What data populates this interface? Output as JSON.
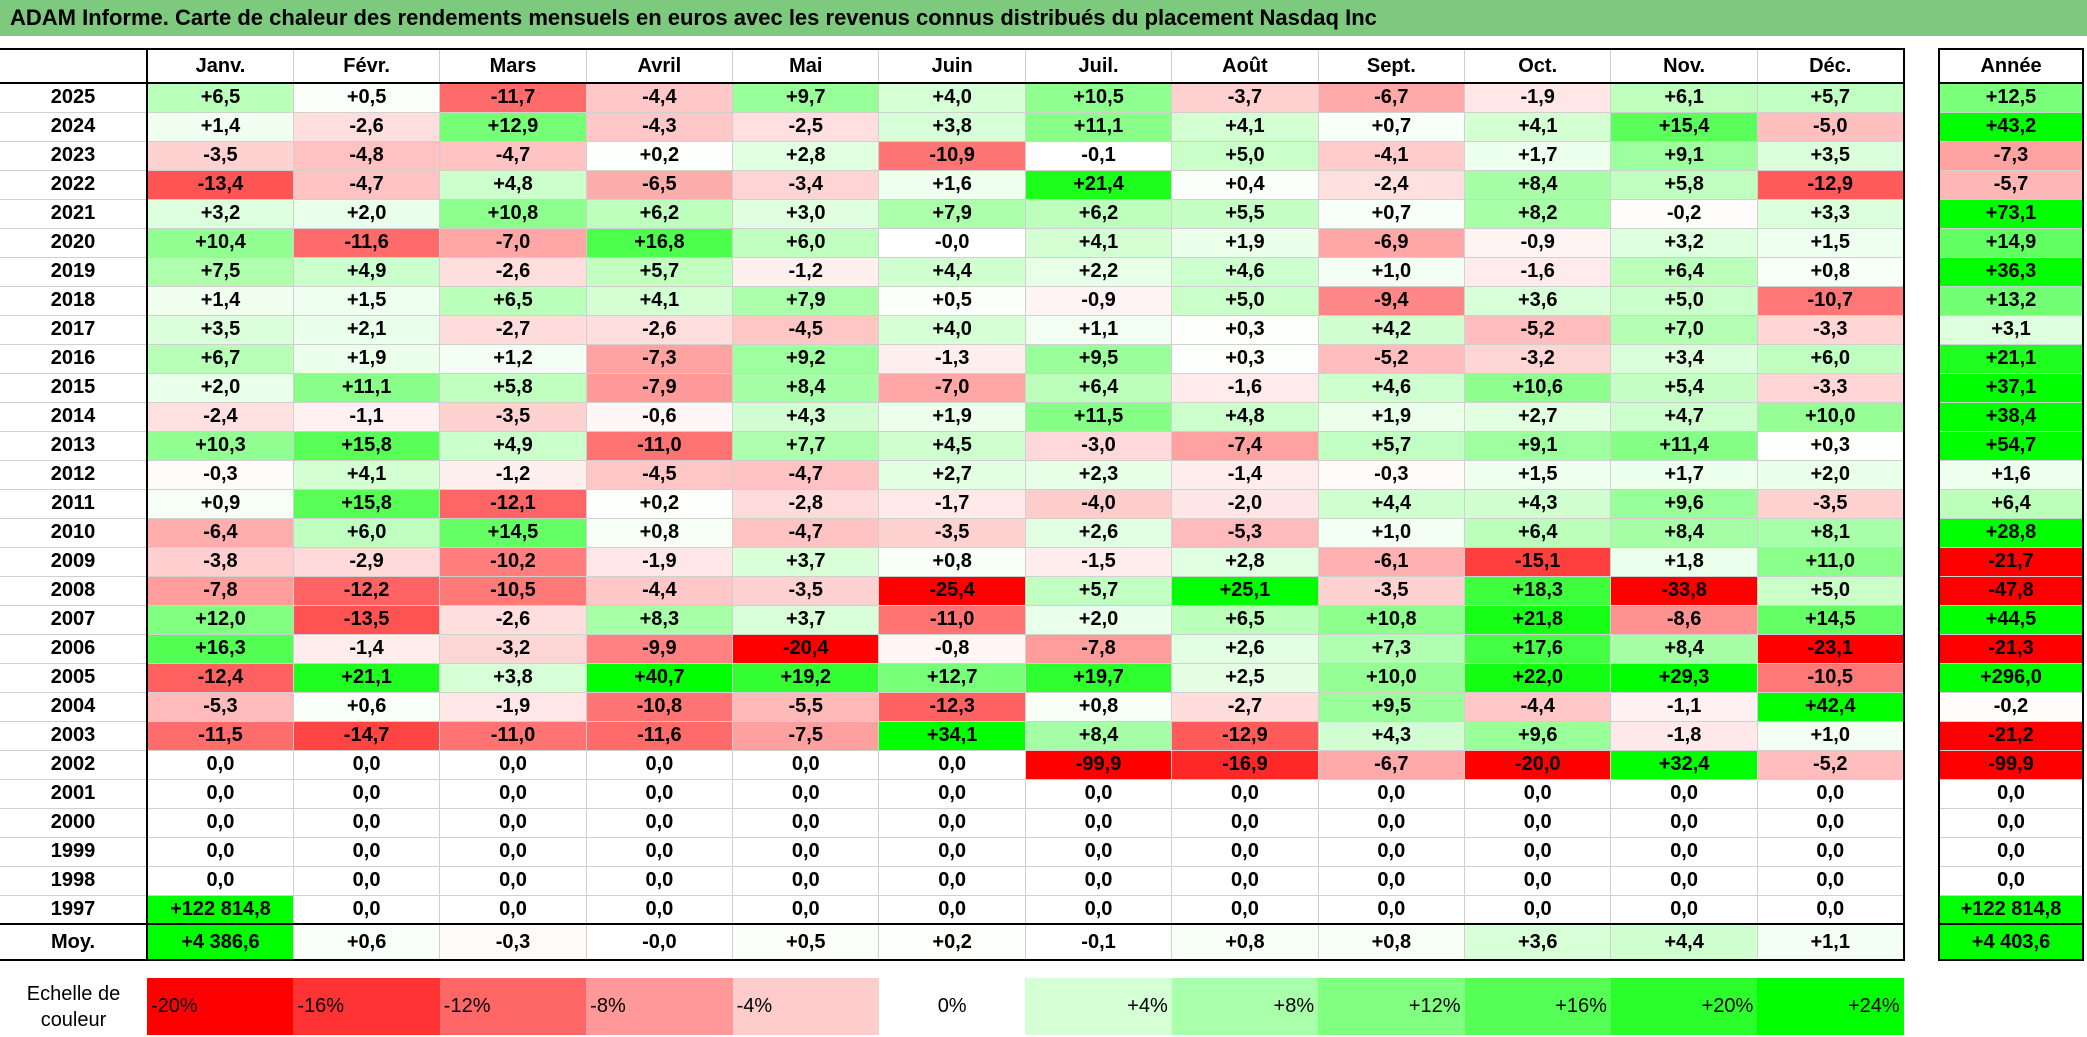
{
  "title": "ADAM Informe. Carte de chaleur des rendements mensuels en euros avec les revenus connus distribués du placement Nasdaq Inc",
  "chart_data": {
    "type": "heatmap",
    "months": [
      "Janv.",
      "Févr.",
      "Mars",
      "Avril",
      "Mai",
      "Juin",
      "Juil.",
      "Août",
      "Sept.",
      "Oct.",
      "Nov.",
      "Déc."
    ],
    "year_header": "Année",
    "rows": [
      {
        "label": "2025",
        "values": [
          "+6,5",
          "+0,5",
          "-11,7",
          "-4,4",
          "+9,7",
          "+4,0",
          "+10,5",
          "-3,7",
          "-6,7",
          "-1,9",
          "+6,1",
          "+5,7"
        ],
        "year": "+12,5"
      },
      {
        "label": "2024",
        "values": [
          "+1,4",
          "-2,6",
          "+12,9",
          "-4,3",
          "-2,5",
          "+3,8",
          "+11,1",
          "+4,1",
          "+0,7",
          "+4,1",
          "+15,4",
          "-5,0"
        ],
        "year": "+43,2"
      },
      {
        "label": "2023",
        "values": [
          "-3,5",
          "-4,8",
          "-4,7",
          "+0,2",
          "+2,8",
          "-10,9",
          "-0,1",
          "+5,0",
          "-4,1",
          "+1,7",
          "+9,1",
          "+3,5"
        ],
        "year": "-7,3"
      },
      {
        "label": "2022",
        "values": [
          "-13,4",
          "-4,7",
          "+4,8",
          "-6,5",
          "-3,4",
          "+1,6",
          "+21,4",
          "+0,4",
          "-2,4",
          "+8,4",
          "+5,8",
          "-12,9"
        ],
        "year": "-5,7"
      },
      {
        "label": "2021",
        "values": [
          "+3,2",
          "+2,0",
          "+10,8",
          "+6,2",
          "+3,0",
          "+7,9",
          "+6,2",
          "+5,5",
          "+0,7",
          "+8,2",
          "-0,2",
          "+3,3"
        ],
        "year": "+73,1"
      },
      {
        "label": "2020",
        "values": [
          "+10,4",
          "-11,6",
          "-7,0",
          "+16,8",
          "+6,0",
          "-0,0",
          "+4,1",
          "+1,9",
          "-6,9",
          "-0,9",
          "+3,2",
          "+1,5"
        ],
        "year": "+14,9"
      },
      {
        "label": "2019",
        "values": [
          "+7,5",
          "+4,9",
          "-2,6",
          "+5,7",
          "-1,2",
          "+4,4",
          "+2,2",
          "+4,6",
          "+1,0",
          "-1,6",
          "+6,4",
          "+0,8"
        ],
        "year": "+36,3"
      },
      {
        "label": "2018",
        "values": [
          "+1,4",
          "+1,5",
          "+6,5",
          "+4,1",
          "+7,9",
          "+0,5",
          "-0,9",
          "+5,0",
          "-9,4",
          "+3,6",
          "+5,0",
          "-10,7"
        ],
        "year": "+13,2"
      },
      {
        "label": "2017",
        "values": [
          "+3,5",
          "+2,1",
          "-2,7",
          "-2,6",
          "-4,5",
          "+4,0",
          "+1,1",
          "+0,3",
          "+4,2",
          "-5,2",
          "+7,0",
          "-3,3"
        ],
        "year": "+3,1"
      },
      {
        "label": "2016",
        "values": [
          "+6,7",
          "+1,9",
          "+1,2",
          "-7,3",
          "+9,2",
          "-1,3",
          "+9,5",
          "+0,3",
          "-5,2",
          "-3,2",
          "+3,4",
          "+6,0"
        ],
        "year": "+21,1"
      },
      {
        "label": "2015",
        "values": [
          "+2,0",
          "+11,1",
          "+5,8",
          "-7,9",
          "+8,4",
          "-7,0",
          "+6,4",
          "-1,6",
          "+4,6",
          "+10,6",
          "+5,4",
          "-3,3"
        ],
        "year": "+37,1"
      },
      {
        "label": "2014",
        "values": [
          "-2,4",
          "-1,1",
          "-3,5",
          "-0,6",
          "+4,3",
          "+1,9",
          "+11,5",
          "+4,8",
          "+1,9",
          "+2,7",
          "+4,7",
          "+10,0"
        ],
        "year": "+38,4"
      },
      {
        "label": "2013",
        "values": [
          "+10,3",
          "+15,8",
          "+4,9",
          "-11,0",
          "+7,7",
          "+4,5",
          "-3,0",
          "-7,4",
          "+5,7",
          "+9,1",
          "+11,4",
          "+0,3"
        ],
        "year": "+54,7"
      },
      {
        "label": "2012",
        "values": [
          "-0,3",
          "+4,1",
          "-1,2",
          "-4,5",
          "-4,7",
          "+2,7",
          "+2,3",
          "-1,4",
          "-0,3",
          "+1,5",
          "+1,7",
          "+2,0"
        ],
        "year": "+1,6"
      },
      {
        "label": "2011",
        "values": [
          "+0,9",
          "+15,8",
          "-12,1",
          "+0,2",
          "-2,8",
          "-1,7",
          "-4,0",
          "-2,0",
          "+4,4",
          "+4,3",
          "+9,6",
          "-3,5"
        ],
        "year": "+6,4"
      },
      {
        "label": "2010",
        "values": [
          "-6,4",
          "+6,0",
          "+14,5",
          "+0,8",
          "-4,7",
          "-3,5",
          "+2,6",
          "-5,3",
          "+1,0",
          "+6,4",
          "+8,4",
          "+8,1"
        ],
        "year": "+28,8"
      },
      {
        "label": "2009",
        "values": [
          "-3,8",
          "-2,9",
          "-10,2",
          "-1,9",
          "+3,7",
          "+0,8",
          "-1,5",
          "+2,8",
          "-6,1",
          "-15,1",
          "+1,8",
          "+11,0"
        ],
        "year": "-21,7"
      },
      {
        "label": "2008",
        "values": [
          "-7,8",
          "-12,2",
          "-10,5",
          "-4,4",
          "-3,5",
          "-25,4",
          "+5,7",
          "+25,1",
          "-3,5",
          "+18,3",
          "-33,8",
          "+5,0"
        ],
        "year": "-47,8"
      },
      {
        "label": "2007",
        "values": [
          "+12,0",
          "-13,5",
          "-2,6",
          "+8,3",
          "+3,7",
          "-11,0",
          "+2,0",
          "+6,5",
          "+10,8",
          "+21,8",
          "-8,6",
          "+14,5"
        ],
        "year": "+44,5"
      },
      {
        "label": "2006",
        "values": [
          "+16,3",
          "-1,4",
          "-3,2",
          "-9,9",
          "-20,4",
          "-0,8",
          "-7,8",
          "+2,6",
          "+7,3",
          "+17,6",
          "+8,4",
          "-23,1"
        ],
        "year": "-21,3"
      },
      {
        "label": "2005",
        "values": [
          "-12,4",
          "+21,1",
          "+3,8",
          "+40,7",
          "+19,2",
          "+12,7",
          "+19,7",
          "+2,5",
          "+10,0",
          "+22,0",
          "+29,3",
          "-10,5"
        ],
        "year": "+296,0"
      },
      {
        "label": "2004",
        "values": [
          "-5,3",
          "+0,6",
          "-1,9",
          "-10,8",
          "-5,5",
          "-12,3",
          "+0,8",
          "-2,7",
          "+9,5",
          "-4,4",
          "-1,1",
          "+42,4"
        ],
        "year": "-0,2"
      },
      {
        "label": "2003",
        "values": [
          "-11,5",
          "-14,7",
          "-11,0",
          "-11,6",
          "-7,5",
          "+34,1",
          "+8,4",
          "-12,9",
          "+4,3",
          "+9,6",
          "-1,8",
          "+1,0"
        ],
        "year": "-21,2"
      },
      {
        "label": "2002",
        "values": [
          "0,0",
          "0,0",
          "0,0",
          "0,0",
          "0,0",
          "0,0",
          "-99,9",
          "-16,9",
          "-6,7",
          "-20,0",
          "+32,4",
          "-5,2"
        ],
        "year": "-99,9"
      },
      {
        "label": "2001",
        "values": [
          "0,0",
          "0,0",
          "0,0",
          "0,0",
          "0,0",
          "0,0",
          "0,0",
          "0,0",
          "0,0",
          "0,0",
          "0,0",
          "0,0"
        ],
        "year": "0,0"
      },
      {
        "label": "2000",
        "values": [
          "0,0",
          "0,0",
          "0,0",
          "0,0",
          "0,0",
          "0,0",
          "0,0",
          "0,0",
          "0,0",
          "0,0",
          "0,0",
          "0,0"
        ],
        "year": "0,0"
      },
      {
        "label": "1999",
        "values": [
          "0,0",
          "0,0",
          "0,0",
          "0,0",
          "0,0",
          "0,0",
          "0,0",
          "0,0",
          "0,0",
          "0,0",
          "0,0",
          "0,0"
        ],
        "year": "0,0"
      },
      {
        "label": "1998",
        "values": [
          "0,0",
          "0,0",
          "0,0",
          "0,0",
          "0,0",
          "0,0",
          "0,0",
          "0,0",
          "0,0",
          "0,0",
          "0,0",
          "0,0"
        ],
        "year": "0,0"
      },
      {
        "label": "1997",
        "values": [
          "+122 814,8",
          "0,0",
          "0,0",
          "0,0",
          "0,0",
          "0,0",
          "0,0",
          "0,0",
          "0,0",
          "0,0",
          "0,0",
          "0,0"
        ],
        "year": "+122 814,8"
      }
    ],
    "average": {
      "label": "Moy.",
      "values": [
        "+4 386,6",
        "+0,6",
        "-0,3",
        "-0,0",
        "+0,5",
        "+0,2",
        "-0,1",
        "+0,8",
        "+0,8",
        "+3,6",
        "+4,4",
        "+1,1"
      ],
      "year": "+4 403,6"
    },
    "scale": {
      "label": "Echelle de couleur",
      "steps": [
        "-20%",
        "-16%",
        "-12%",
        "-8%",
        "-4%",
        "0%",
        "+4%",
        "+8%",
        "+12%",
        "+16%",
        "+20%",
        "+24%"
      ],
      "step_values": [
        -20,
        -16,
        -12,
        -8,
        -4,
        0,
        4,
        8,
        12,
        16,
        20,
        24
      ]
    },
    "colors": {
      "negative": "#ff0000",
      "neutral": "#ffffff",
      "positive": "#00ff00",
      "title_bar": "#7dc97d"
    }
  }
}
